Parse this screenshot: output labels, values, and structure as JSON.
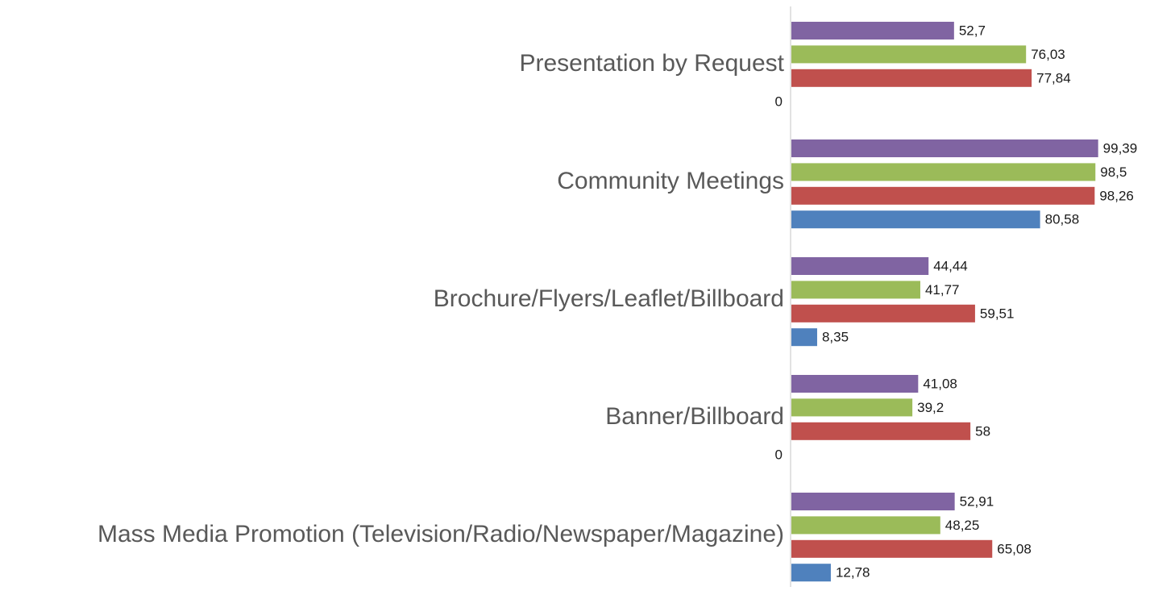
{
  "chart_data": {
    "type": "bar",
    "orientation": "horizontal",
    "categories": [
      "Presentation by Request",
      "Community Meetings",
      "Brochure/Flyers/Leaflet/Billboard",
      "Banner/Billboard",
      "Mass Media Promotion (Television/Radio/Newspaper/Magazine)"
    ],
    "series": [
      {
        "color": "#8064A2",
        "values": [
          52.7,
          99.39,
          44.44,
          41.08,
          52.91
        ],
        "labels": [
          "52,7",
          "99,39",
          "44,44",
          "41,08",
          "52,91"
        ]
      },
      {
        "color": "#9BBB59",
        "values": [
          76.03,
          98.5,
          41.77,
          39.2,
          48.25
        ],
        "labels": [
          "76,03",
          "98,5",
          "41,77",
          "39,2",
          "48,25"
        ]
      },
      {
        "color": "#C0504D",
        "values": [
          77.84,
          98.26,
          59.51,
          58,
          65.08
        ],
        "labels": [
          "77,84",
          "98,26",
          "59,51",
          "58",
          "65,08"
        ]
      },
      {
        "color": "#4F81BD",
        "values": [
          0,
          80.58,
          8.35,
          0,
          12.78
        ],
        "labels": [
          "0",
          "80,58",
          "8,35",
          "0",
          "12,78"
        ]
      }
    ],
    "xlim": [
      0,
      100
    ],
    "legend": "none",
    "grid": false,
    "axis_color": "#D9D9D9"
  }
}
